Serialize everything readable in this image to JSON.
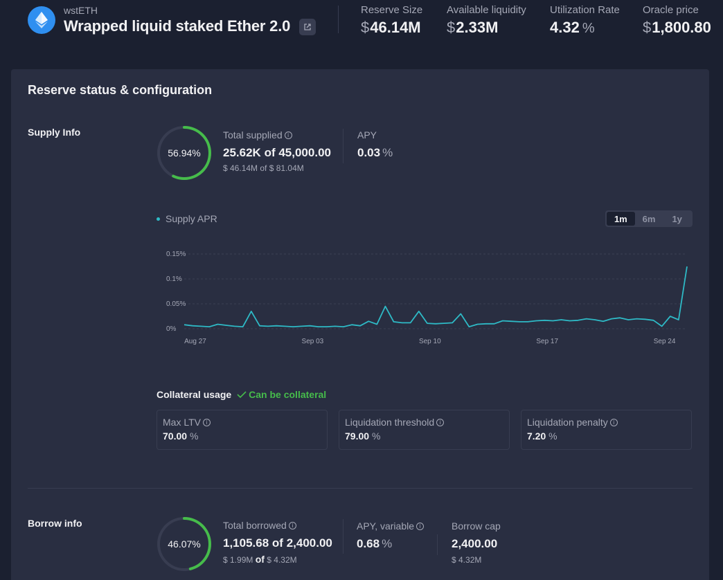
{
  "header": {
    "symbol": "wstETH",
    "name": "Wrapped liquid staked Ether 2.0",
    "stats": [
      {
        "label": "Reserve Size",
        "currency": "$",
        "value": "46.14M",
        "suffix": ""
      },
      {
        "label": "Available liquidity",
        "currency": "$",
        "value": "2.33M",
        "suffix": ""
      },
      {
        "label": "Utilization Rate",
        "currency": "",
        "value": "4.32",
        "suffix": "%"
      },
      {
        "label": "Oracle price",
        "currency": "$",
        "value": "1,800.80",
        "suffix": ""
      }
    ]
  },
  "panel": {
    "title": "Reserve status & configuration",
    "supply": {
      "section_label": "Supply Info",
      "ring_percent": "56.94%",
      "ring_fraction": 0.5694,
      "total_label": "Total supplied",
      "total_value": "25.62K",
      "of_word": "of",
      "total_cap": "45,000.00",
      "usd_sub": "$ 46.14M of $ 81.04M",
      "apy_label": "APY",
      "apy_value": "0.03",
      "apy_suffix": "%"
    },
    "chart": {
      "legend": "Supply APR",
      "ranges": [
        "1m",
        "6m",
        "1y"
      ],
      "active_range": "1m"
    },
    "collateral": {
      "title": "Collateral usage",
      "status": "Can be collateral",
      "items": [
        {
          "label": "Max LTV",
          "value": "70.00",
          "suffix": "%"
        },
        {
          "label": "Liquidation threshold",
          "value": "79.00",
          "suffix": "%"
        },
        {
          "label": "Liquidation penalty",
          "value": "7.20",
          "suffix": "%"
        }
      ]
    },
    "borrow": {
      "section_label": "Borrow info",
      "ring_percent": "46.07%",
      "ring_fraction": 0.4607,
      "total_label": "Total borrowed",
      "total_value": "1,105.68",
      "of_word": "of",
      "total_cap": "2,400.00",
      "usd_value": "$ 1.99M",
      "usd_of": "of",
      "usd_cap": "$ 4.32M",
      "apy_label": "APY, variable",
      "apy_value": "0.68",
      "apy_suffix": "%",
      "cap_label": "Borrow cap",
      "cap_value": "2,400.00",
      "cap_usd": "$ 4.32M"
    }
  },
  "colors": {
    "background": "#1b2030",
    "panel": "#292e41",
    "accent_green": "#46bc4b",
    "line_teal": "#2ebac6"
  },
  "chart_data": {
    "type": "line",
    "title": "",
    "xlabel": "",
    "ylabel": "",
    "series": [
      {
        "name": "Supply APR",
        "color": "#2ebac6"
      }
    ],
    "x_ticks": [
      "Aug 27",
      "Sep 03",
      "Sep 10",
      "Sep 17",
      "Sep 24"
    ],
    "y_ticks": [
      "0%",
      "0.05%",
      "0.1%",
      "0.15%"
    ],
    "ylim": [
      0,
      0.15
    ],
    "x": [
      0,
      0.5,
      1,
      1.5,
      2,
      2.5,
      3,
      3.5,
      4,
      4.5,
      5,
      5.5,
      6,
      6.5,
      7,
      7.5,
      8,
      8.5,
      9,
      9.5,
      10,
      10.5,
      11,
      11.5,
      12,
      12.5,
      13,
      13.5,
      14,
      14.5,
      15,
      15.5,
      16,
      16.5,
      17,
      17.5,
      18,
      18.5,
      19,
      19.5,
      20,
      20.5,
      21,
      21.5,
      22,
      22.5,
      23,
      23.5,
      24,
      24.5,
      25,
      25.5,
      26,
      26.5,
      27,
      27.5,
      28,
      28.5,
      29,
      29.5,
      30
    ],
    "values": [
      0.008,
      0.006,
      0.005,
      0.004,
      0.009,
      0.007,
      0.005,
      0.004,
      0.035,
      0.006,
      0.005,
      0.006,
      0.005,
      0.004,
      0.005,
      0.006,
      0.004,
      0.004,
      0.005,
      0.004,
      0.008,
      0.006,
      0.015,
      0.009,
      0.045,
      0.014,
      0.012,
      0.012,
      0.035,
      0.011,
      0.01,
      0.011,
      0.012,
      0.03,
      0.004,
      0.009,
      0.01,
      0.01,
      0.016,
      0.015,
      0.014,
      0.014,
      0.016,
      0.017,
      0.016,
      0.018,
      0.016,
      0.017,
      0.02,
      0.018,
      0.015,
      0.02,
      0.022,
      0.018,
      0.02,
      0.019,
      0.017,
      0.005,
      0.025,
      0.018,
      0.125
    ]
  }
}
